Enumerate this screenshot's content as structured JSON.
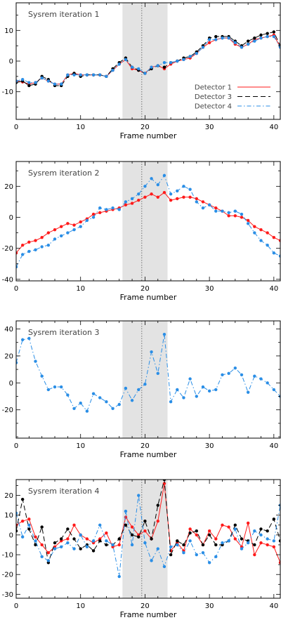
{
  "colors": {
    "detector1": "#ff1a1a",
    "detector3": "#000000",
    "detector4": "#2a8ee6",
    "shade": "#e3e3e3"
  },
  "legend": {
    "position": "middle-right",
    "entries": [
      "Detector 1",
      "Detector 3",
      "Detector 4"
    ]
  },
  "chart_data": [
    {
      "type": "line",
      "title": "Sysrem iteration 1",
      "xlabel": "Frame number",
      "xlim": [
        0,
        41
      ],
      "ylim": [
        -19,
        19
      ],
      "xticks": [
        0,
        10,
        20,
        30,
        40
      ],
      "yticks": [
        -10,
        0,
        10
      ],
      "shaded_region": [
        16.5,
        23.5
      ],
      "vline": 19.5,
      "x": [
        0,
        1,
        2,
        3,
        4,
        5,
        6,
        7,
        8,
        9,
        10,
        11,
        12,
        13,
        14,
        15,
        16,
        17,
        18,
        19,
        20,
        21,
        22,
        23,
        24,
        25,
        26,
        27,
        28,
        29,
        30,
        31,
        32,
        33,
        34,
        35,
        36,
        37,
        38,
        39,
        40,
        41
      ],
      "series": [
        {
          "name": "Detector 1",
          "values": [
            -6.5,
            -6.8,
            -7.5,
            -7,
            -5.5,
            -6.5,
            -7.5,
            -7.5,
            -4.5,
            -4,
            -4.5,
            -4.5,
            -4.5,
            -4.5,
            -5,
            -3,
            -1,
            0.5,
            -2.5,
            -3,
            -4,
            -2,
            -1.5,
            -2.5,
            -1,
            0,
            0.5,
            1,
            2.5,
            4.5,
            6,
            7,
            7.5,
            7.5,
            5.5,
            4.5,
            5.5,
            7,
            7.5,
            8,
            8.5,
            4.5
          ]
        },
        {
          "name": "Detector 3",
          "values": [
            -7,
            -6.5,
            -8,
            -7.5,
            -5,
            -6,
            -8,
            -8,
            -5,
            -4,
            -5,
            -4.5,
            -4.5,
            -4.5,
            -5,
            -2.5,
            -0.5,
            1,
            -2,
            -3,
            -4,
            -2.5,
            -1.5,
            -2,
            -0.5,
            0,
            1,
            1.5,
            3,
            5,
            7.5,
            8,
            8,
            8,
            6.5,
            5,
            6.5,
            7.5,
            8.5,
            9,
            9.5,
            5
          ]
        },
        {
          "name": "Detector 4",
          "values": [
            -6.5,
            -6,
            -7,
            -7,
            -5.5,
            -6.5,
            -7.5,
            -7.5,
            -4.5,
            -4.5,
            -4.5,
            -4.5,
            -4.5,
            -4.5,
            -5,
            -3,
            -1,
            0.5,
            -2,
            -2.5,
            -4,
            -2,
            -1.5,
            -0.5,
            -0.5,
            0,
            0.5,
            1.5,
            2.5,
            4.5,
            7,
            7,
            7.5,
            7.5,
            6,
            4.5,
            5.5,
            6.5,
            7.5,
            8,
            8,
            4.5
          ]
        }
      ]
    },
    {
      "type": "line",
      "title": "Sysrem iteration 2",
      "xlabel": "Frame number",
      "xlim": [
        0,
        41
      ],
      "ylim": [
        -41,
        36
      ],
      "xticks": [
        0,
        10,
        20,
        30,
        40
      ],
      "yticks": [
        -40,
        -20,
        0,
        20
      ],
      "shaded_region": [
        16.5,
        23.5
      ],
      "vline": 19.5,
      "x": [
        0,
        1,
        2,
        3,
        4,
        5,
        6,
        7,
        8,
        9,
        10,
        11,
        12,
        13,
        14,
        15,
        16,
        17,
        18,
        19,
        20,
        21,
        22,
        23,
        24,
        25,
        26,
        27,
        28,
        29,
        30,
        31,
        32,
        33,
        34,
        35,
        36,
        37,
        38,
        39,
        40,
        41
      ],
      "series": [
        {
          "name": "Detector 1",
          "values": [
            -23,
            -18,
            -16,
            -15,
            -13,
            -10,
            -8,
            -6,
            -4,
            -5,
            -3,
            -1,
            2,
            3,
            4,
            5,
            6,
            8,
            9,
            11,
            13,
            15,
            13,
            16,
            11,
            12,
            13,
            13,
            12,
            10,
            8,
            6,
            4,
            1,
            1,
            0,
            -2,
            -6,
            -8,
            -10,
            -13,
            -15
          ]
        },
        {
          "name": "Detector 4",
          "values": [
            -32,
            -24,
            -22,
            -21,
            -19,
            -18,
            -14,
            -12,
            -10,
            -8,
            -6,
            -2,
            0,
            6,
            5,
            6,
            5,
            10,
            12,
            15,
            20,
            25,
            21,
            27,
            15,
            17,
            20,
            18,
            10,
            6,
            8,
            4,
            4,
            3,
            4,
            2,
            -4,
            -10,
            -15,
            -18,
            -23,
            -25
          ]
        }
      ]
    },
    {
      "type": "line",
      "title": "Sysrem iteration 3",
      "xlabel": "Frame number",
      "xlim": [
        0,
        41
      ],
      "ylim": [
        -41,
        46
      ],
      "xticks": [
        0,
        10,
        20,
        30,
        40
      ],
      "yticks": [
        -20,
        0,
        20,
        40
      ],
      "shaded_region": [
        16.5,
        23.5
      ],
      "vline": 19.5,
      "x": [
        0,
        1,
        2,
        3,
        4,
        5,
        6,
        7,
        8,
        9,
        10,
        11,
        12,
        13,
        14,
        15,
        16,
        17,
        18,
        19,
        20,
        21,
        22,
        23,
        24,
        25,
        26,
        27,
        28,
        29,
        30,
        31,
        32,
        33,
        34,
        35,
        36,
        37,
        38,
        39,
        40,
        41
      ],
      "series": [
        {
          "name": "Detector 4",
          "values": [
            15,
            32,
            33,
            16,
            5,
            -5,
            -3,
            -3,
            -9,
            -19,
            -15,
            -21,
            -8,
            -11,
            -14,
            -19,
            -16,
            -4,
            -13,
            -5,
            -1,
            23,
            7,
            36,
            -14,
            -5,
            -11,
            3,
            -10,
            -3,
            -6,
            -5,
            6,
            7,
            11,
            6,
            -7,
            5,
            3,
            0,
            -5,
            -10
          ]
        }
      ]
    },
    {
      "type": "line",
      "title": "Sysrem iteration 4",
      "xlabel": "Frame number",
      "xlim": [
        0,
        41
      ],
      "ylim": [
        -32,
        28
      ],
      "xticks": [
        0,
        10,
        20,
        30,
        40
      ],
      "yticks": [
        -30,
        -20,
        -10,
        0,
        10,
        20
      ],
      "shaded_region": [
        16.5,
        23.5
      ],
      "vline": 19.5,
      "x": [
        0,
        1,
        2,
        3,
        4,
        5,
        6,
        7,
        8,
        9,
        10,
        11,
        12,
        13,
        14,
        15,
        16,
        17,
        18,
        19,
        20,
        21,
        22,
        23,
        24,
        25,
        26,
        27,
        28,
        29,
        30,
        31,
        32,
        33,
        34,
        35,
        36,
        37,
        38,
        39,
        40,
        41
      ],
      "series": [
        {
          "name": "Detector 1",
          "values": [
            5,
            7,
            8,
            -1,
            -5,
            -9,
            -6,
            -3,
            -2,
            5,
            0,
            -2,
            -4,
            -2,
            1,
            -6,
            -5,
            9,
            4,
            0,
            2,
            -2,
            7,
            26,
            -8,
            -4,
            -8,
            3,
            0,
            -5,
            2,
            -2,
            5,
            4,
            -2,
            -6,
            6,
            -10,
            -4,
            -5,
            -6,
            -14
          ]
        },
        {
          "name": "Detector 3",
          "values": [
            2,
            18,
            3,
            -5,
            4,
            -14,
            -4,
            -2,
            3,
            -2,
            -7,
            -5,
            -8,
            -3,
            -5,
            -5,
            -2,
            5,
            0,
            -1,
            7,
            -2,
            15,
            28,
            -10,
            -3,
            -5,
            1,
            2,
            -5,
            0,
            -5,
            -5,
            -3,
            5,
            -2,
            -3,
            -5,
            3,
            2,
            8,
            -3
          ]
        },
        {
          "name": "Detector 4",
          "values": [
            11,
            -1,
            5,
            -3,
            -11,
            -13,
            -7,
            -6,
            -4,
            -7,
            0,
            -6,
            -3,
            5,
            -3,
            -5,
            -21,
            12,
            -5,
            20,
            -4,
            -13,
            -7,
            -16,
            -6,
            -5,
            -9,
            -3,
            -10,
            -9,
            -14,
            -11,
            -4,
            -3,
            3,
            -7,
            -4,
            2,
            0,
            -2,
            -3,
            15
          ]
        }
      ]
    }
  ]
}
